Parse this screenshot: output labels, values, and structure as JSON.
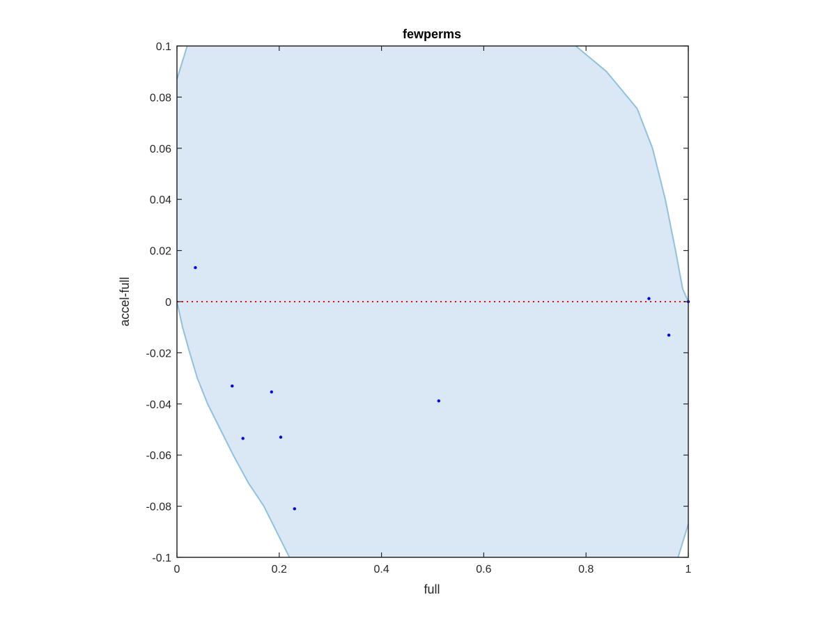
{
  "chart_data": {
    "type": "scatter",
    "title": "fewperms",
    "xlabel": "full",
    "ylabel": "accel-full",
    "xlim": [
      0,
      1
    ],
    "ylim": [
      -0.1,
      0.1
    ],
    "xticks": [
      0,
      0.2,
      0.4,
      0.6,
      0.8,
      1
    ],
    "xtick_labels": [
      "0",
      "0.2",
      "0.4",
      "0.6",
      "0.8",
      "1"
    ],
    "yticks": [
      -0.1,
      -0.08,
      -0.06,
      -0.04,
      -0.02,
      0,
      0.02,
      0.04,
      0.06,
      0.08,
      0.1
    ],
    "ytick_labels": [
      "-0.1",
      "-0.08",
      "-0.06",
      "-0.04",
      "-0.02",
      "0",
      "0.02",
      "0.04",
      "0.06",
      "0.08",
      "0.1"
    ],
    "grid": false,
    "reference_line": {
      "y": 0,
      "style": "dotted",
      "color": "#ff0000"
    },
    "region": {
      "fill": "#d9e8f4",
      "stroke": "#8fc1e0",
      "left_boundary": [
        [
          0,
          0.087
        ],
        [
          0.02,
          0.1
        ]
      ],
      "lower_boundary": [
        [
          0,
          0
        ],
        [
          0.011,
          -0.01
        ],
        [
          0.025,
          -0.02
        ],
        [
          0.04,
          -0.03
        ],
        [
          0.06,
          -0.04
        ],
        [
          0.085,
          -0.05
        ],
        [
          0.11,
          -0.06
        ],
        [
          0.14,
          -0.071
        ],
        [
          0.17,
          -0.08
        ],
        [
          0.195,
          -0.09
        ],
        [
          0.22,
          -0.1
        ]
      ],
      "upper_boundary": [
        [
          0.78,
          0.1
        ],
        [
          0.84,
          0.09
        ],
        [
          0.9,
          0.0755
        ],
        [
          0.93,
          0.06
        ],
        [
          0.955,
          0.04
        ],
        [
          0.975,
          0.02
        ],
        [
          0.989,
          0.005
        ],
        [
          1,
          0
        ]
      ],
      "bottom_right_boundary": [
        [
          0.98,
          -0.1
        ],
        [
          1,
          -0.087
        ]
      ],
      "colors": [
        "#d9e8f4",
        "#8fc1e0"
      ]
    },
    "series": [
      {
        "marker_color": "#0000ff",
        "points": [
          [
            0.036,
            0.0133
          ],
          [
            0.108,
            -0.033
          ],
          [
            0.129,
            -0.0535
          ],
          [
            0.185,
            -0.0353
          ],
          [
            0.203,
            -0.053
          ],
          [
            0.23,
            -0.081
          ],
          [
            0.512,
            -0.0388
          ],
          [
            0.923,
            0.0012
          ],
          [
            0.962,
            -0.0131
          ],
          [
            1.0,
            0.0
          ]
        ]
      }
    ]
  }
}
